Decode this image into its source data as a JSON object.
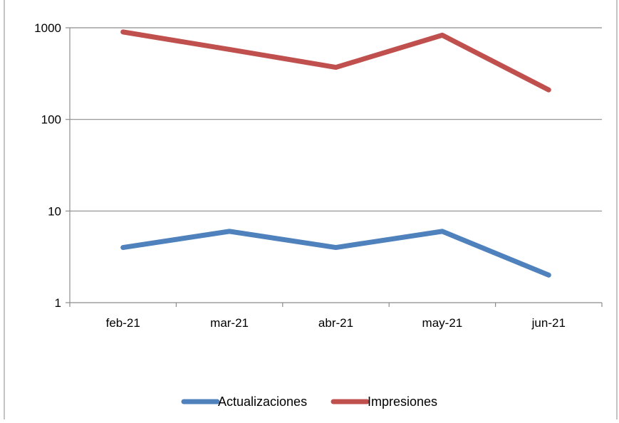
{
  "chart_data": {
    "type": "line",
    "title": "",
    "categories": [
      "feb-21",
      "mar-21",
      "abr-21",
      "may-21",
      "jun-21"
    ],
    "y_scale": "log",
    "ylim": [
      1,
      1000
    ],
    "y_ticks": [
      "1",
      "10",
      "100",
      "1000"
    ],
    "grid": "horizontal",
    "legend_position": "bottom",
    "series": [
      {
        "name": "Actualizaciones",
        "color": "#4f81bd",
        "values": [
          4,
          6,
          4,
          6,
          2
        ]
      },
      {
        "name": "Impresiones",
        "color": "#c0504d",
        "values": [
          900,
          580,
          370,
          830,
          210
        ]
      }
    ]
  }
}
